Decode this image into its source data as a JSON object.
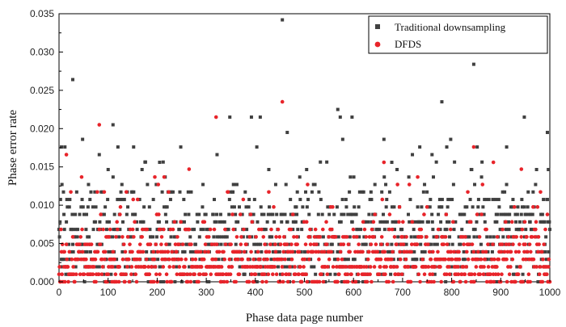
{
  "chart_data": {
    "type": "scatter",
    "xlabel": "Phase data page number",
    "ylabel": "Phase error rate",
    "xlim": [
      0,
      1000
    ],
    "ylim": [
      0,
      0.035
    ],
    "xticks": [
      "0",
      "100",
      "200",
      "300",
      "400",
      "500",
      "600",
      "700",
      "800",
      "900",
      "1000"
    ],
    "yticks": [
      "0.000",
      "0.005",
      "0.010",
      "0.015",
      "0.020",
      "0.025",
      "0.030",
      "0.035"
    ],
    "grid": false,
    "legend_position": "top-right",
    "series": [
      {
        "name": "Traditional downsampling",
        "marker": "square",
        "color": "#404040",
        "point_count": 1000,
        "outliers": [
          [
            5,
            0.0176
          ],
          [
            12,
            0.0176
          ],
          [
            28,
            0.0264
          ],
          [
            48,
            0.0186
          ],
          [
            82,
            0.0166
          ],
          [
            110,
            0.0205
          ],
          [
            120,
            0.0176
          ],
          [
            152,
            0.0176
          ],
          [
            205,
            0.0156
          ],
          [
            248,
            0.0176
          ],
          [
            322,
            0.0166
          ],
          [
            348,
            0.0215
          ],
          [
            392,
            0.0215
          ],
          [
            403,
            0.0176
          ],
          [
            410,
            0.0215
          ],
          [
            455,
            0.0342
          ],
          [
            465,
            0.0195
          ],
          [
            568,
            0.0225
          ],
          [
            573,
            0.0215
          ],
          [
            578,
            0.0186
          ],
          [
            597,
            0.0215
          ],
          [
            662,
            0.0186
          ],
          [
            678,
            0.0156
          ],
          [
            720,
            0.0166
          ],
          [
            735,
            0.0176
          ],
          [
            760,
            0.0166
          ],
          [
            780,
            0.0235
          ],
          [
            790,
            0.0176
          ],
          [
            798,
            0.0186
          ],
          [
            845,
            0.0284
          ],
          [
            852,
            0.0176
          ],
          [
            912,
            0.0176
          ],
          [
            948,
            0.0215
          ],
          [
            995,
            0.0195
          ]
        ]
      },
      {
        "name": "DFDS",
        "marker": "circle",
        "color": "#e8242a",
        "point_count": 1000,
        "outliers": [
          [
            15,
            0.0166
          ],
          [
            82,
            0.0205
          ],
          [
            265,
            0.0147
          ],
          [
            320,
            0.0215
          ],
          [
            455,
            0.0235
          ],
          [
            662,
            0.0156
          ],
          [
            845,
            0.0176
          ],
          [
            885,
            0.0156
          ],
          [
            942,
            0.0147
          ]
        ]
      }
    ]
  }
}
